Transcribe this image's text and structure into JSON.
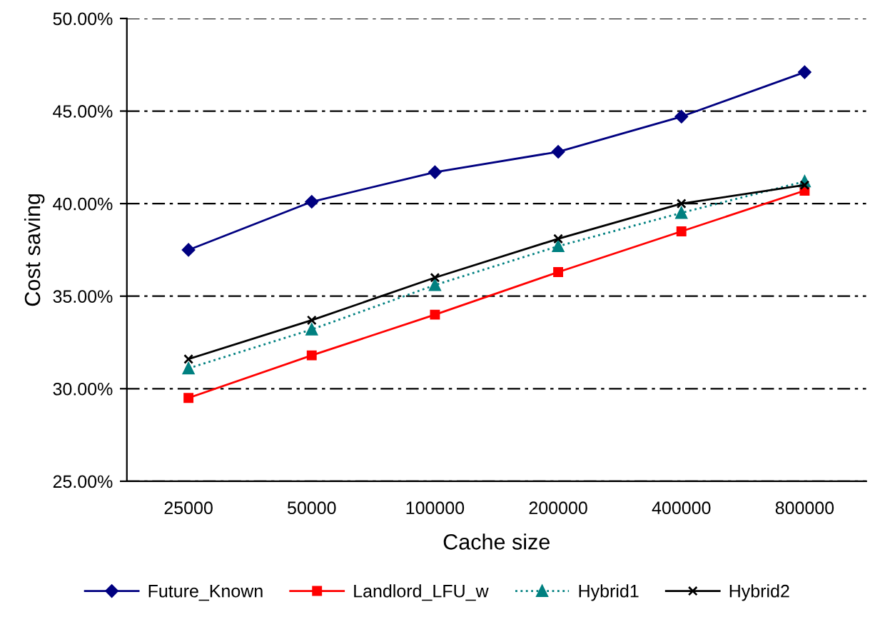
{
  "chart_data": {
    "type": "line",
    "xlabel": "Cache size",
    "ylabel": "Cost saving",
    "categories": [
      "25000",
      "50000",
      "100000",
      "200000",
      "400000",
      "800000"
    ],
    "series": [
      {
        "name": "Future_Known",
        "color": "#000080",
        "marker": "diamond",
        "line_style": "solid",
        "values": [
          37.5,
          40.1,
          41.7,
          42.8,
          44.7,
          47.1
        ]
      },
      {
        "name": "Landlord_LFU_w",
        "color": "#ff0000",
        "marker": "square",
        "line_style": "solid",
        "values": [
          29.5,
          31.8,
          34.0,
          36.3,
          38.5,
          40.7
        ]
      },
      {
        "name": "Hybrid1",
        "color": "#008080",
        "marker": "triangle",
        "line_style": "dotted",
        "values": [
          31.1,
          33.2,
          35.6,
          37.7,
          39.5,
          41.2
        ]
      },
      {
        "name": "Hybrid2",
        "color": "#000000",
        "marker": "cross",
        "line_style": "solid",
        "values": [
          31.6,
          33.7,
          36.0,
          38.1,
          40.0,
          41.0
        ]
      }
    ],
    "ylim": [
      25,
      50
    ],
    "yticks": [
      {
        "value": 25,
        "label": "25.00%"
      },
      {
        "value": 30,
        "label": "30.00%"
      },
      {
        "value": 35,
        "label": "35.00%"
      },
      {
        "value": 40,
        "label": "40.00%"
      },
      {
        "value": 45,
        "label": "45.00%"
      },
      {
        "value": 50,
        "label": "50.00%"
      }
    ],
    "grid": "y",
    "legend": "bottom"
  }
}
